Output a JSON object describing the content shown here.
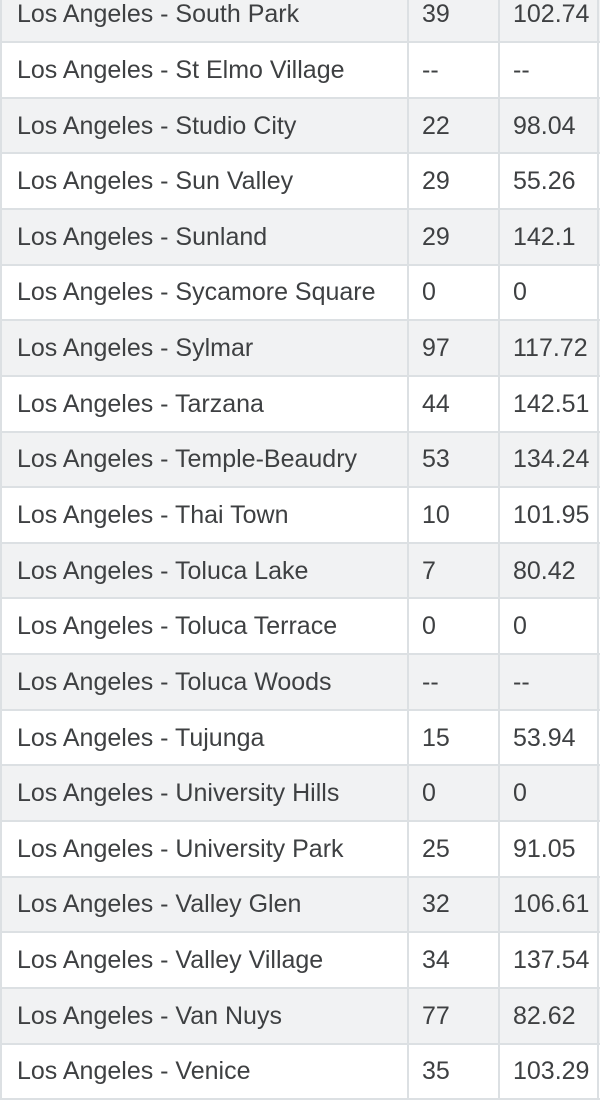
{
  "colors": {
    "row_stripe": "#f1f2f3",
    "row_plain": "#ffffff",
    "border": "#dce0e3",
    "text": "#3e4042"
  },
  "table": {
    "no_data_marker": "--",
    "rows": [
      {
        "name": "Los Angeles - South Park",
        "v1": "39",
        "v2": "102.74"
      },
      {
        "name": "Los Angeles - St Elmo Village",
        "v1": "--",
        "v2": "--"
      },
      {
        "name": "Los Angeles - Studio City",
        "v1": "22",
        "v2": "98.04"
      },
      {
        "name": "Los Angeles - Sun Valley",
        "v1": "29",
        "v2": "55.26"
      },
      {
        "name": "Los Angeles - Sunland",
        "v1": "29",
        "v2": "142.1"
      },
      {
        "name": "Los Angeles - Sycamore Square",
        "v1": "0",
        "v2": "0"
      },
      {
        "name": "Los Angeles - Sylmar",
        "v1": "97",
        "v2": "117.72"
      },
      {
        "name": "Los Angeles - Tarzana",
        "v1": "44",
        "v2": "142.51"
      },
      {
        "name": "Los Angeles - Temple-Beaudry",
        "v1": "53",
        "v2": "134.24"
      },
      {
        "name": "Los Angeles - Thai Town",
        "v1": "10",
        "v2": "101.95"
      },
      {
        "name": "Los Angeles - Toluca Lake",
        "v1": "7",
        "v2": "80.42"
      },
      {
        "name": "Los Angeles - Toluca Terrace",
        "v1": "0",
        "v2": "0"
      },
      {
        "name": "Los Angeles - Toluca Woods",
        "v1": "--",
        "v2": "--"
      },
      {
        "name": "Los Angeles - Tujunga",
        "v1": "15",
        "v2": "53.94"
      },
      {
        "name": "Los Angeles - University Hills",
        "v1": "0",
        "v2": "0"
      },
      {
        "name": "Los Angeles - University Park",
        "v1": "25",
        "v2": "91.05"
      },
      {
        "name": "Los Angeles - Valley Glen",
        "v1": "32",
        "v2": "106.61"
      },
      {
        "name": "Los Angeles - Valley Village",
        "v1": "34",
        "v2": "137.54"
      },
      {
        "name": "Los Angeles - Van Nuys",
        "v1": "77",
        "v2": "82.62"
      },
      {
        "name": "Los Angeles - Venice",
        "v1": "35",
        "v2": "103.29"
      }
    ]
  }
}
